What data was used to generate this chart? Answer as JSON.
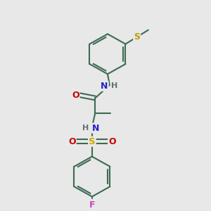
{
  "bg_color": "#e8e8e8",
  "bond_color": "#3d6b52",
  "bond_width": 1.5,
  "atom_colors": {
    "N": "#2222cc",
    "O": "#cc0000",
    "S_sulfonyl": "#ccaa00",
    "S_thio": "#b8a000",
    "F": "#cc44bb",
    "H": "#607070"
  },
  "font_size": 8.5,
  "fig_bg": "#e8e8e8"
}
